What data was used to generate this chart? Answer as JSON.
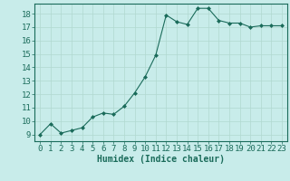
{
  "x": [
    0,
    1,
    2,
    3,
    4,
    5,
    6,
    7,
    8,
    9,
    10,
    11,
    12,
    13,
    14,
    15,
    16,
    17,
    18,
    19,
    20,
    21,
    22,
    23
  ],
  "y": [
    9.0,
    9.8,
    9.1,
    9.3,
    9.5,
    10.3,
    10.6,
    10.5,
    11.1,
    12.1,
    13.3,
    14.9,
    17.9,
    17.4,
    17.2,
    18.4,
    18.4,
    17.5,
    17.3,
    17.3,
    17.0,
    17.1,
    17.1,
    17.1
  ],
  "line_color": "#1a6b5a",
  "marker": "D",
  "marker_size": 2,
  "bg_color": "#c8ecea",
  "grid_color": "#b0d8d0",
  "axis_color": "#1a6b5a",
  "xlabel": "Humidex (Indice chaleur)",
  "xlim": [
    -0.5,
    23.5
  ],
  "ylim": [
    8.5,
    18.75
  ],
  "xticks": [
    0,
    1,
    2,
    3,
    4,
    5,
    6,
    7,
    8,
    9,
    10,
    11,
    12,
    13,
    14,
    15,
    16,
    17,
    18,
    19,
    20,
    21,
    22,
    23
  ],
  "yticks": [
    9,
    10,
    11,
    12,
    13,
    14,
    15,
    16,
    17,
    18
  ],
  "xlabel_fontsize": 7,
  "tick_fontsize": 6.5
}
